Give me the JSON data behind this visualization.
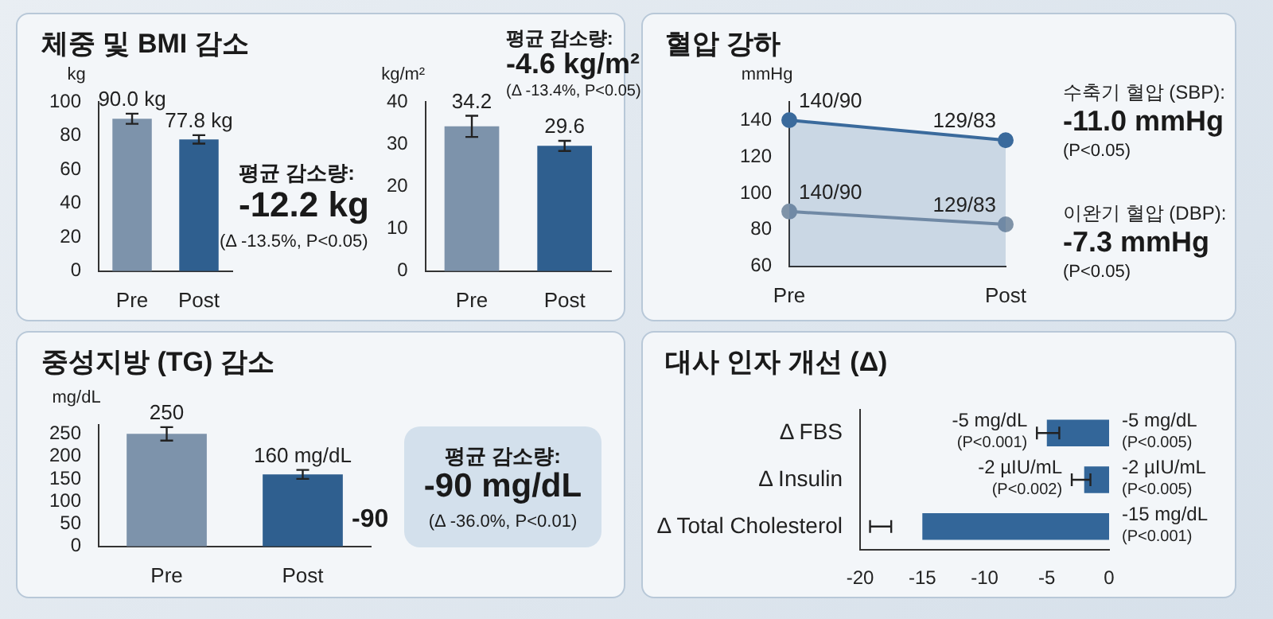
{
  "chart_data": [
    {
      "type": "bar",
      "title": "체중 및 BMI 감소",
      "ylabel": "kg",
      "categories": [
        "Pre",
        "Post"
      ],
      "values": [
        90.0,
        77.8
      ],
      "colors": [
        "#7d93ab",
        "#2f5f8f"
      ],
      "errors": [
        3,
        2.5
      ],
      "value_labels": [
        "90.0 kg",
        "77.8 kg"
      ],
      "ylim": [
        0,
        100
      ],
      "yticks": [
        0,
        20,
        40,
        60,
        80,
        100
      ],
      "annotations": [
        "평균 감소량:",
        "-12.2 kg",
        "(Δ -13.5%, P<0.05)"
      ]
    },
    {
      "type": "bar",
      "ylabel": "kg/m²",
      "categories": [
        "Pre",
        "Post"
      ],
      "values": [
        34.2,
        29.6
      ],
      "colors": [
        "#7d93ab",
        "#2f5f8f"
      ],
      "errors": [
        2.5,
        1.2
      ],
      "data_labels": true,
      "ylim": [
        0,
        40
      ],
      "yticks": [
        0,
        10,
        20,
        30,
        40
      ],
      "annotations": [
        "평균 감소량:",
        "-4.6 kg/m²",
        "(Δ -13.4%, P<0.05)"
      ]
    },
    {
      "type": "line",
      "title": "혈압 강하",
      "ylabel": "mmHg",
      "categories": [
        "Pre",
        "Post"
      ],
      "marker": "circle",
      "series": [
        {
          "name": "수축기 혈압 (SBP):",
          "type": "area",
          "color": "#3a6a9c",
          "values": [
            140,
            129
          ],
          "value_labels": [
            "140/90",
            "129/83"
          ]
        },
        {
          "name": "이완기 혈압 (DBP):",
          "color": "#7f93a8",
          "values": [
            90,
            83
          ],
          "value_labels": [
            "140/90",
            "129/83"
          ]
        }
      ],
      "ylim": [
        60,
        150
      ],
      "yticks": [
        60,
        80,
        100,
        120,
        140
      ],
      "annotations": [
        "-11.0 mmHg",
        "(P<0.05)",
        "-7.3 mmHg",
        "(P<0.05)"
      ]
    },
    {
      "type": "bar",
      "title": "중성지방 (TG) 감소",
      "ylabel": "mg/dL",
      "categories": [
        "Pre",
        "Post"
      ],
      "values": [
        250,
        160
      ],
      "colors": [
        "#7d93ab",
        "#2f5f8f"
      ],
      "errors": [
        15,
        10
      ],
      "value_labels": [
        "250",
        "160 mg/dL"
      ],
      "ylim": [
        0,
        270
      ],
      "yticks": [
        0,
        50,
        100,
        150,
        200,
        250
      ],
      "annotations": [
        "-90",
        "평균 감소량:",
        "-90 mg/dL",
        "(Δ -36.0%, P<0.01)"
      ]
    },
    {
      "type": "bar",
      "title": "대사 인자 개선 (Δ)",
      "orientation": "horizontal",
      "categories": [
        "Δ FBS",
        "Δ Insulin",
        "Δ Total Cholesterol"
      ],
      "values": [
        -5,
        -2,
        -15
      ],
      "color": "#336699",
      "errors": [
        [
          -5.8,
          -4
        ],
        [
          -3,
          -1.5
        ],
        [
          -19.2,
          -17.5
        ]
      ],
      "value_labels": [
        "-5 mg/dL\n(P<0.005)",
        "-2 µIU/mL\n(P<0.005)",
        "-15 mg/dL\n(P<0.001)"
      ],
      "xlim": [
        -20,
        0
      ],
      "xticks": [
        -20,
        -15,
        -10,
        -5,
        0
      ],
      "annotations": [
        {
          "text": "-5 mg/dL\n(P<0.001)",
          "x": -5.8,
          "y": "Δ FBS"
        },
        {
          "text": "-2 µIU/mL\n(P<0.002)",
          "x": -3,
          "y": "Δ Insulin"
        }
      ]
    }
  ]
}
